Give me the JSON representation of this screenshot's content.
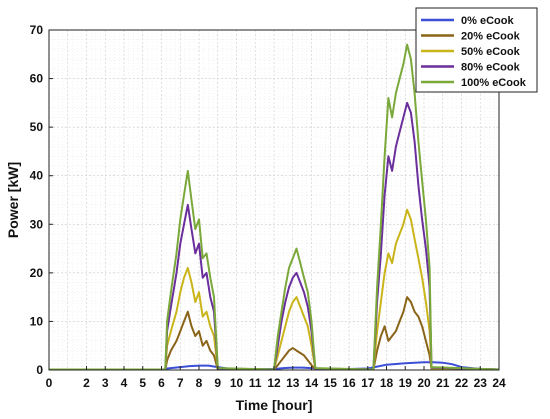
{
  "chart_data": {
    "type": "line",
    "title": "",
    "xlabel": "Time [hour]",
    "ylabel": "Power [kW]",
    "xlim": [
      0,
      24
    ],
    "ylim": [
      0,
      70
    ],
    "xticks": [
      "0",
      "2",
      "3",
      "4",
      "5",
      "6",
      "7",
      "8",
      "9",
      "10",
      "11",
      "12",
      "13",
      "14",
      "15",
      "16",
      "17",
      "18",
      "19",
      "20",
      "21",
      "22",
      "23",
      "24"
    ],
    "yticks": [
      "0",
      "10",
      "20",
      "30",
      "40",
      "50",
      "60",
      "70"
    ],
    "grid": true,
    "legend_position": "top-right",
    "series": [
      {
        "name": "0% eCook",
        "color": "#3b4fd6",
        "x": [
          0,
          6.1,
          6.3,
          7.0,
          7.5,
          8.0,
          8.5,
          9.0,
          9.5,
          10.0,
          11.0,
          12.0,
          12.5,
          13.0,
          13.5,
          14.0,
          14.5,
          15.0,
          16.0,
          17.0,
          17.5,
          18.0,
          19.0,
          20.0,
          20.5,
          21.0,
          21.5,
          22.0,
          23.0,
          24.0
        ],
        "y": [
          0.1,
          0.1,
          0.3,
          0.6,
          0.8,
          0.9,
          0.9,
          0.6,
          0.3,
          0.1,
          0.1,
          0.2,
          0.4,
          0.5,
          0.5,
          0.4,
          0.3,
          0.2,
          0.2,
          0.3,
          0.7,
          1.1,
          1.4,
          1.6,
          1.6,
          1.5,
          1.2,
          0.6,
          0.2,
          0.1
        ]
      },
      {
        "name": "20% eCook",
        "color": "#8a6418",
        "x": [
          0,
          6.2,
          6.3,
          6.5,
          6.8,
          7.0,
          7.2,
          7.4,
          7.6,
          7.8,
          8.0,
          8.2,
          8.4,
          8.6,
          8.8,
          9.0,
          12.0,
          12.2,
          12.4,
          12.6,
          12.8,
          13.0,
          13.2,
          13.4,
          13.6,
          13.8,
          14.0,
          14.2,
          17.3,
          17.5,
          17.7,
          17.9,
          18.1,
          18.3,
          18.5,
          18.7,
          18.9,
          19.1,
          19.3,
          19.5,
          19.7,
          19.9,
          20.1,
          20.3,
          20.4,
          24.0
        ],
        "y": [
          0.1,
          0.1,
          2,
          4,
          6,
          8,
          10,
          12,
          9,
          7,
          8,
          5,
          6,
          4,
          3,
          0.1,
          0.1,
          1,
          2,
          3,
          4,
          4.5,
          4,
          3.5,
          3,
          2,
          1,
          0.1,
          0.1,
          4,
          7,
          9,
          6,
          7,
          8,
          10,
          12,
          15,
          14,
          12,
          11,
          9,
          6,
          3,
          0.2,
          0.1
        ]
      },
      {
        "name": "50% eCook",
        "color": "#c9b51a",
        "x": [
          0,
          6.2,
          6.3,
          6.5,
          6.8,
          7.0,
          7.2,
          7.4,
          7.6,
          7.8,
          8.0,
          8.2,
          8.4,
          8.6,
          8.8,
          9.0,
          12.0,
          12.2,
          12.4,
          12.6,
          12.8,
          13.0,
          13.2,
          13.4,
          13.6,
          13.8,
          14.0,
          14.2,
          17.3,
          17.5,
          17.7,
          17.9,
          18.1,
          18.3,
          18.5,
          18.7,
          18.9,
          19.1,
          19.3,
          19.5,
          19.7,
          19.9,
          20.1,
          20.3,
          20.4,
          24.0
        ],
        "y": [
          0.1,
          0.1,
          5,
          8,
          12,
          16,
          19,
          21,
          18,
          14,
          16,
          11,
          12,
          9,
          7,
          0.2,
          0.1,
          3,
          6,
          9,
          12,
          14,
          15,
          13,
          11,
          9,
          5,
          0.2,
          0.1,
          8,
          14,
          20,
          24,
          22,
          26,
          28,
          30,
          33,
          31,
          27,
          23,
          19,
          14,
          8,
          0.3,
          0.1
        ]
      },
      {
        "name": "80% eCook",
        "color": "#6a2f9c",
        "x": [
          0,
          6.2,
          6.3,
          6.5,
          6.8,
          7.0,
          7.2,
          7.4,
          7.6,
          7.8,
          8.0,
          8.2,
          8.4,
          8.6,
          8.8,
          9.0,
          12.0,
          12.2,
          12.4,
          12.6,
          12.8,
          13.0,
          13.2,
          13.4,
          13.6,
          13.8,
          14.0,
          14.2,
          17.3,
          17.5,
          17.7,
          17.9,
          18.1,
          18.3,
          18.5,
          18.7,
          18.9,
          19.1,
          19.3,
          19.5,
          19.7,
          19.9,
          20.1,
          20.3,
          20.4,
          24.0
        ],
        "y": [
          0.1,
          0.1,
          8,
          13,
          20,
          26,
          30,
          34,
          29,
          24,
          26,
          19,
          20,
          15,
          12,
          0.3,
          0.1,
          5,
          10,
          14,
          17,
          19,
          20,
          18,
          16,
          13,
          8,
          0.3,
          0.1,
          14,
          24,
          36,
          44,
          41,
          46,
          49,
          52,
          55,
          53,
          47,
          38,
          31,
          25,
          17,
          0.5,
          0.1
        ]
      },
      {
        "name": "100% eCook",
        "color": "#7aa83a",
        "x": [
          0,
          6.2,
          6.3,
          6.5,
          6.8,
          7.0,
          7.2,
          7.4,
          7.6,
          7.8,
          8.0,
          8.2,
          8.4,
          8.6,
          8.8,
          9.0,
          12.0,
          12.2,
          12.4,
          12.6,
          12.8,
          13.0,
          13.2,
          13.4,
          13.6,
          13.8,
          14.0,
          14.2,
          17.3,
          17.5,
          17.7,
          17.9,
          18.1,
          18.3,
          18.5,
          18.7,
          18.9,
          19.1,
          19.3,
          19.5,
          19.7,
          19.9,
          20.1,
          20.3,
          20.4,
          24.0
        ],
        "y": [
          0.1,
          0.1,
          10,
          16,
          24,
          31,
          36,
          41,
          35,
          29,
          31,
          23,
          24,
          19,
          15,
          0.4,
          0.1,
          7,
          12,
          17,
          21,
          23,
          25,
          22,
          19,
          16,
          10,
          0.4,
          0.1,
          17,
          30,
          44,
          56,
          52,
          57,
          60,
          63,
          67,
          64,
          57,
          47,
          39,
          31,
          21,
          0.6,
          0.1
        ]
      }
    ]
  }
}
